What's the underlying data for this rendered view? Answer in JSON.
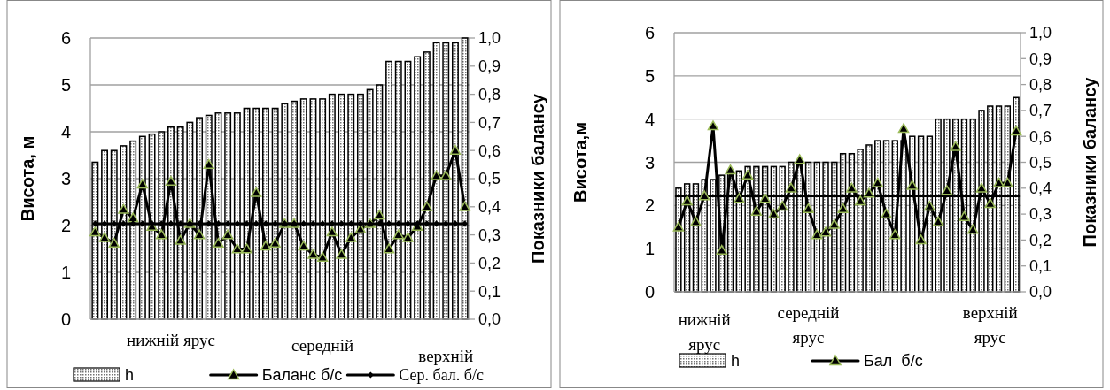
{
  "chart_data": [
    {
      "type": "bar",
      "ylabel": "Висота, м",
      "y2label": "Показники балансу",
      "categories": [
        null,
        null,
        null,
        null,
        null,
        null,
        null,
        null,
        "нижній ярус",
        null,
        null,
        null,
        null,
        null,
        null,
        null,
        null,
        null,
        null,
        null,
        null,
        null,
        null,
        null,
        "середній",
        null,
        null,
        null,
        null,
        null,
        null,
        null,
        null,
        null,
        null,
        null,
        null,
        "верхній",
        null,
        null
      ],
      "series": [
        {
          "name": "h",
          "color": "#000000",
          "values": [
            3.35,
            3.6,
            3.6,
            3.7,
            3.8,
            3.9,
            3.95,
            4.0,
            4.1,
            4.1,
            4.2,
            4.3,
            4.35,
            4.4,
            4.4,
            4.4,
            4.5,
            4.5,
            4.5,
            4.5,
            4.6,
            4.65,
            4.7,
            4.7,
            4.7,
            4.8,
            4.8,
            4.8,
            4.8,
            4.9,
            5.0,
            5.5,
            5.5,
            5.5,
            5.6,
            5.7,
            5.9,
            5.9,
            5.9,
            6.0
          ]
        },
        {
          "name": "Баланс б/с",
          "type": "line",
          "axis": "y2",
          "color": "#000000",
          "marker": "triangle",
          "values": [
            0.31,
            0.29,
            0.27,
            0.39,
            0.36,
            0.48,
            0.33,
            0.3,
            0.49,
            0.28,
            0.34,
            0.3,
            0.55,
            0.27,
            0.3,
            0.25,
            0.25,
            0.45,
            0.26,
            0.27,
            0.34,
            0.34,
            0.26,
            0.23,
            0.22,
            0.31,
            0.23,
            0.29,
            0.32,
            0.34,
            0.37,
            0.25,
            0.3,
            0.29,
            0.33,
            0.4,
            0.51,
            0.51,
            0.6,
            0.4
          ]
        },
        {
          "name": "Сер. бал. б/с",
          "type": "line",
          "axis": "y2",
          "color": "#000000",
          "marker": "diamond",
          "values": [
            0.34,
            0.34,
            0.34,
            0.34,
            0.34,
            0.34,
            0.34,
            0.34,
            0.34,
            0.34,
            0.34,
            0.34,
            0.34,
            0.34,
            0.34,
            0.34,
            0.34,
            0.34,
            0.34,
            0.34,
            0.34,
            0.34,
            0.34,
            0.34,
            0.34,
            0.34,
            0.34,
            0.34,
            0.34,
            0.34,
            0.34,
            0.34,
            0.34,
            0.34,
            0.34,
            0.34,
            0.34,
            0.34,
            0.34,
            0.34
          ]
        }
      ],
      "ylim": [
        0,
        6
      ],
      "yticks": [
        0,
        1,
        2,
        3,
        4,
        5,
        6
      ],
      "y2lim": [
        0,
        1
      ],
      "y2ticks": [
        {
          "value": 0,
          "label": "0,0"
        },
        {
          "value": 0.1,
          "label": "0,1"
        },
        {
          "value": 0.2,
          "label": "0,2"
        },
        {
          "value": 0.3,
          "label": "0,3"
        },
        {
          "value": 0.4,
          "label": "0,4"
        },
        {
          "value": 0.5,
          "label": "0,5"
        },
        {
          "value": 0.6,
          "label": "0,6"
        },
        {
          "value": 0.7,
          "label": "0,7"
        },
        {
          "value": 0.8,
          "label": "0,8"
        },
        {
          "value": 0.9,
          "label": "0,9"
        },
        {
          "value": 1,
          "label": "1,0"
        }
      ],
      "grid": "y",
      "legend": "bottom"
    },
    {
      "type": "bar",
      "ylabel": "Висота,м",
      "y2label": "Показники балансу",
      "categories": [
        null,
        null,
        null,
        "нижній ярус",
        null,
        null,
        null,
        null,
        null,
        null,
        null,
        null,
        null,
        null,
        null,
        "середній ярус",
        null,
        null,
        null,
        null,
        null,
        null,
        null,
        null,
        null,
        null,
        null,
        null,
        null,
        null,
        null,
        null,
        null,
        null,
        null,
        null,
        "верхній ярус",
        null,
        null,
        null
      ],
      "series": [
        {
          "name": "h",
          "color": "#000000",
          "values": [
            2.4,
            2.5,
            2.5,
            2.6,
            2.6,
            2.7,
            2.8,
            2.8,
            2.9,
            2.9,
            2.9,
            2.9,
            2.9,
            3.0,
            3.0,
            3.0,
            3.0,
            3.0,
            3.0,
            3.2,
            3.2,
            3.3,
            3.4,
            3.5,
            3.5,
            3.5,
            3.5,
            3.6,
            3.6,
            3.6,
            4.0,
            4.0,
            4.0,
            4.0,
            4.0,
            4.2,
            4.3,
            4.3,
            4.3,
            4.5
          ]
        },
        {
          "name": "Бал  б/с",
          "type": "line",
          "axis": "y2",
          "color": "#000000",
          "marker": "triangle",
          "values": [
            0.25,
            0.35,
            0.27,
            0.37,
            0.64,
            0.16,
            0.47,
            0.36,
            0.45,
            0.31,
            0.36,
            0.3,
            0.33,
            0.4,
            0.51,
            0.32,
            0.22,
            0.23,
            0.26,
            0.32,
            0.4,
            0.35,
            0.38,
            0.42,
            0.3,
            0.22,
            0.63,
            0.41,
            0.2,
            0.33,
            0.27,
            0.39,
            0.56,
            0.29,
            0.24,
            0.4,
            0.34,
            0.42,
            0.42,
            0.62
          ]
        }
      ],
      "ref_lines": [
        {
          "axis": "y2",
          "value": 0.37,
          "color": "#000000"
        }
      ],
      "ylim": [
        0,
        6
      ],
      "yticks": [
        0,
        1,
        2,
        3,
        4,
        5,
        6
      ],
      "y2lim": [
        0,
        1
      ],
      "y2ticks": [
        {
          "value": 0,
          "label": "0,0"
        },
        {
          "value": 0.1,
          "label": "0,1"
        },
        {
          "value": 0.2,
          "label": "0,2"
        },
        {
          "value": 0.3,
          "label": "0,3"
        },
        {
          "value": 0.4,
          "label": "0,4"
        },
        {
          "value": 0.5,
          "label": "0,5"
        },
        {
          "value": 0.6,
          "label": "0,6"
        },
        {
          "value": 0.7,
          "label": "0,7"
        },
        {
          "value": 0.8,
          "label": "0,8"
        },
        {
          "value": 0.9,
          "label": "0,9"
        },
        {
          "value": 1,
          "label": "1,0"
        }
      ],
      "grid": "y",
      "legend": "bottom"
    }
  ]
}
